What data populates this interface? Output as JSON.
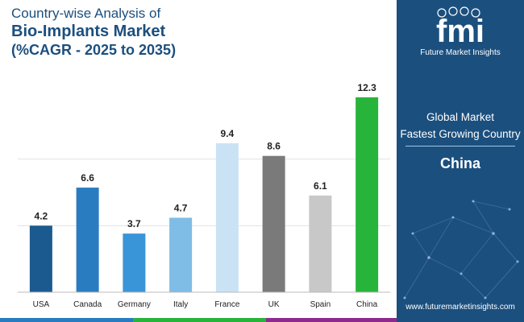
{
  "header": {
    "line1": "Country-wise Analysis of",
    "line2": "Bio-Implants Market",
    "line3": "(%CAGR - 2025 to 2035)"
  },
  "chart_data": {
    "type": "bar",
    "categories": [
      "USA",
      "Canada",
      "Germany",
      "Italy",
      "France",
      "UK",
      "Spain",
      "China"
    ],
    "values": [
      4.2,
      6.6,
      3.7,
      4.7,
      9.4,
      8.6,
      6.1,
      12.3
    ],
    "colors": [
      "#1b5a8e",
      "#2a7cc0",
      "#3a94d8",
      "#7fbce6",
      "#c9e3f5",
      "#7a7a7a",
      "#c8c8c8",
      "#27b43b"
    ],
    "ylim": [
      0,
      12.8
    ],
    "grid": true,
    "gridlines": [
      4.2,
      8.4
    ],
    "data_labels": true
  },
  "panel": {
    "logo_text": "fmi",
    "logo_sub": "Future Market Insights",
    "global_market": "Global Market",
    "fastest": "Fastest Growing Country",
    "country": "China",
    "url": "www.futuremarketinsights.com",
    "bg_color": "#1b4f7e"
  },
  "strip_colors": [
    "#2a7cc0",
    "#27b43b",
    "#8e2a8e"
  ]
}
